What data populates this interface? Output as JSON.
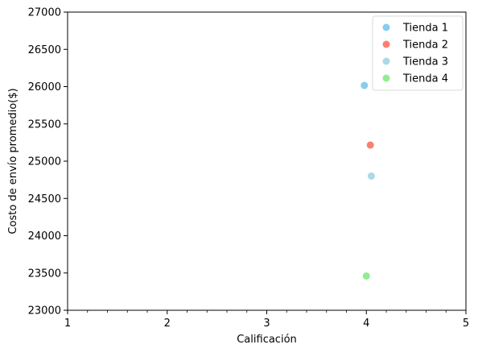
{
  "chart_data": {
    "type": "scatter",
    "title": "",
    "xlabel": "Calificación",
    "ylabel": "Costo de envío promedio($)",
    "xlim": [
      1,
      5
    ],
    "ylim": [
      23000,
      27000
    ],
    "x_major_ticks": [
      1,
      2,
      3,
      4,
      5
    ],
    "x_tick_labels": [
      "1",
      "2",
      "3",
      "4",
      "5"
    ],
    "x_minor_ticks": [
      1.2,
      1.4,
      1.6,
      1.8,
      2.2,
      2.4,
      2.6,
      2.8,
      3.2,
      3.4,
      3.6,
      3.8,
      4.2,
      4.4,
      4.6,
      4.8
    ],
    "y_ticks": [
      23000,
      23500,
      24000,
      24500,
      25000,
      25500,
      26000,
      26500,
      27000
    ],
    "y_tick_labels": [
      "23000",
      "23500",
      "24000",
      "24500",
      "25000",
      "25500",
      "26000",
      "26500",
      "27000"
    ],
    "grid": false,
    "legend_position": "top-right",
    "series": [
      {
        "name": "Tienda 1",
        "color": "#87CEEB",
        "points": [
          {
            "x": 3.98,
            "y": 26016
          }
        ]
      },
      {
        "name": "Tienda 2",
        "color": "#FA8072",
        "points": [
          {
            "x": 4.04,
            "y": 25216
          }
        ]
      },
      {
        "name": "Tienda 3",
        "color": "#ADD8E6",
        "points": [
          {
            "x": 4.05,
            "y": 24800
          }
        ]
      },
      {
        "name": "Tienda 4",
        "color": "#90EE90",
        "points": [
          {
            "x": 4.0,
            "y": 23460
          }
        ]
      }
    ]
  }
}
